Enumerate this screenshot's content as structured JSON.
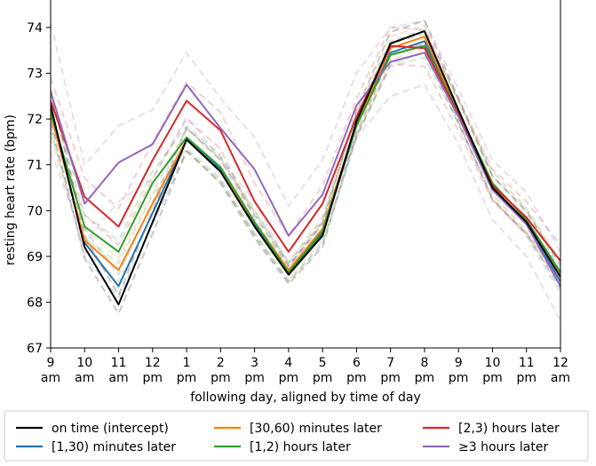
{
  "chart_data": {
    "type": "line",
    "xlabel": "following day, aligned by time of day",
    "ylabel": "resting heart rate (bpm)",
    "ylim": [
      67,
      74.6
    ],
    "yticks": [
      67,
      68,
      69,
      70,
      71,
      72,
      73,
      74
    ],
    "categories": [
      [
        "9",
        "am"
      ],
      [
        "10",
        "am"
      ],
      [
        "11",
        "am"
      ],
      [
        "12",
        "pm"
      ],
      [
        "1",
        "pm"
      ],
      [
        "2",
        "pm"
      ],
      [
        "3",
        "pm"
      ],
      [
        "4",
        "pm"
      ],
      [
        "5",
        "pm"
      ],
      [
        "6",
        "pm"
      ],
      [
        "7",
        "pm"
      ],
      [
        "8",
        "pm"
      ],
      [
        "9",
        "pm"
      ],
      [
        "10",
        "pm"
      ],
      [
        "11",
        "pm"
      ],
      [
        "12",
        "am"
      ]
    ],
    "legend_position": "bottom",
    "grid": false,
    "series": [
      {
        "name": "on time (intercept)",
        "color": "#000000",
        "values": [
          72.3,
          69.2,
          67.95,
          69.75,
          71.55,
          70.85,
          69.65,
          68.6,
          69.45,
          71.95,
          73.65,
          73.92,
          72.2,
          70.5,
          69.75,
          68.55
        ],
        "ci_lower": [
          71.95,
          68.95,
          67.75,
          69.5,
          71.3,
          70.6,
          69.4,
          68.4,
          69.2,
          71.7,
          73.4,
          73.65,
          71.95,
          70.25,
          69.5,
          68.3
        ],
        "ci_upper": [
          72.65,
          69.45,
          68.15,
          70.0,
          71.8,
          71.1,
          69.9,
          68.8,
          69.7,
          72.2,
          73.9,
          74.15,
          72.45,
          70.75,
          70.0,
          68.8
        ]
      },
      {
        "name": "[1,30) minutes later",
        "color": "#1f77b4",
        "values": [
          72.2,
          69.3,
          68.35,
          69.95,
          71.55,
          70.9,
          69.7,
          68.6,
          69.5,
          71.85,
          73.45,
          73.7,
          72.15,
          70.5,
          69.7,
          68.45
        ],
        "ci_lower": [
          71.8,
          69.0,
          68.1,
          69.7,
          71.3,
          70.65,
          69.45,
          68.45,
          69.25,
          71.6,
          73.2,
          73.45,
          71.9,
          70.25,
          69.45,
          68.2
        ],
        "ci_upper": [
          72.6,
          69.6,
          68.6,
          70.2,
          71.8,
          71.15,
          69.95,
          68.85,
          69.75,
          72.1,
          73.7,
          73.95,
          72.4,
          70.75,
          69.95,
          68.7
        ]
      },
      {
        "name": "[30,60) minutes later",
        "color": "#ff7f0e",
        "values": [
          72.1,
          69.35,
          68.7,
          70.15,
          71.55,
          70.85,
          69.75,
          68.7,
          69.6,
          71.9,
          73.55,
          73.8,
          72.15,
          70.5,
          69.75,
          68.6
        ],
        "ci_lower": [
          71.6,
          69.1,
          68.45,
          69.9,
          71.3,
          70.6,
          69.5,
          68.5,
          69.35,
          71.65,
          73.3,
          73.55,
          71.9,
          70.25,
          69.5,
          68.35
        ],
        "ci_upper": [
          72.6,
          69.6,
          68.95,
          70.4,
          71.8,
          71.1,
          70.0,
          68.9,
          69.85,
          72.15,
          73.8,
          74.05,
          72.4,
          70.75,
          70.0,
          68.85
        ]
      },
      {
        "name": "[1,2) hours later",
        "color": "#2ca02c",
        "values": [
          72.15,
          69.65,
          69.1,
          70.6,
          71.6,
          70.95,
          69.75,
          68.65,
          69.55,
          71.85,
          73.4,
          73.6,
          72.15,
          70.6,
          69.8,
          68.65
        ],
        "ci_lower": [
          71.7,
          69.4,
          68.85,
          70.35,
          71.35,
          70.7,
          69.5,
          68.45,
          69.3,
          71.6,
          73.15,
          73.35,
          71.9,
          70.35,
          69.55,
          68.4
        ],
        "ci_upper": [
          72.6,
          69.9,
          69.35,
          70.85,
          71.85,
          71.2,
          70.0,
          68.85,
          69.8,
          72.1,
          73.65,
          73.85,
          72.4,
          70.85,
          70.05,
          68.9
        ]
      },
      {
        "name": "[2,3) hours later",
        "color": "#d62728",
        "values": [
          72.4,
          70.3,
          69.65,
          71.1,
          72.4,
          71.75,
          70.2,
          69.1,
          70.15,
          72.05,
          73.6,
          73.55,
          72.1,
          70.55,
          69.85,
          68.9
        ],
        "ci_lower": [
          71.9,
          69.9,
          69.25,
          70.7,
          72.0,
          71.35,
          69.8,
          68.75,
          69.75,
          71.65,
          73.2,
          73.15,
          71.75,
          70.2,
          69.5,
          68.55
        ],
        "ci_upper": [
          72.9,
          70.7,
          70.05,
          71.5,
          72.8,
          72.15,
          70.6,
          69.45,
          70.55,
          72.45,
          74.0,
          73.95,
          72.45,
          70.9,
          70.2,
          69.25
        ]
      },
      {
        "name": "≥3 hours later",
        "color": "#9467bd",
        "values": [
          72.6,
          70.15,
          71.05,
          71.45,
          72.75,
          71.8,
          70.9,
          69.45,
          70.35,
          72.3,
          73.25,
          73.45,
          72.05,
          70.45,
          69.7,
          68.35
        ],
        "ci_lower": [
          71.3,
          69.3,
          70.2,
          70.7,
          72.05,
          71.15,
          70.2,
          68.8,
          69.6,
          71.6,
          72.5,
          72.75,
          71.45,
          69.8,
          69.0,
          67.6
        ],
        "ci_upper": [
          74.1,
          71.0,
          71.85,
          72.2,
          73.45,
          72.45,
          71.6,
          70.1,
          71.1,
          73.0,
          74.0,
          74.15,
          72.65,
          71.1,
          70.4,
          69.1
        ]
      }
    ]
  }
}
